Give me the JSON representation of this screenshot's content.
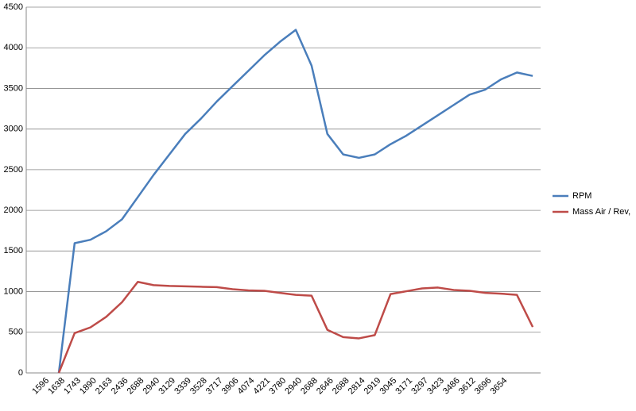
{
  "chart_data": {
    "type": "line",
    "categories": [
      "1596",
      "1638",
      "1743",
      "1890",
      "2163",
      "2436",
      "2688",
      "2940",
      "3129",
      "3339",
      "3528",
      "3717",
      "3906",
      "4074",
      "4221",
      "3780",
      "2940",
      "2688",
      "2646",
      "2688",
      "2814",
      "2919",
      "3045",
      "3171",
      "3297",
      "3423",
      "3486",
      "3612",
      "3696",
      "3654",
      null
    ],
    "series": [
      {
        "name": "RPM",
        "color": "#4a7ebb",
        "values": [
          0,
          1596,
          1638,
          1743,
          1890,
          2163,
          2436,
          2688,
          2940,
          3129,
          3339,
          3528,
          3717,
          3906,
          4074,
          4221,
          3780,
          2940,
          2688,
          2646,
          2688,
          2814,
          2919,
          3045,
          3171,
          3297,
          3423,
          3486,
          3612,
          3696,
          3654
        ]
      },
      {
        "name": "Mass Air / Rev,",
        "color": "#be4b48",
        "values": [
          0,
          490,
          560,
          690,
          870,
          1120,
          1080,
          1070,
          1065,
          1060,
          1055,
          1030,
          1015,
          1010,
          985,
          960,
          950,
          530,
          440,
          425,
          465,
          970,
          1005,
          1040,
          1050,
          1020,
          1010,
          985,
          975,
          960,
          565
        ]
      }
    ],
    "ylim": [
      0,
      4500
    ],
    "yticks": [
      0,
      500,
      1000,
      1500,
      2000,
      2500,
      3000,
      3500,
      4000,
      4500
    ],
    "grid": true,
    "legend": "right"
  }
}
